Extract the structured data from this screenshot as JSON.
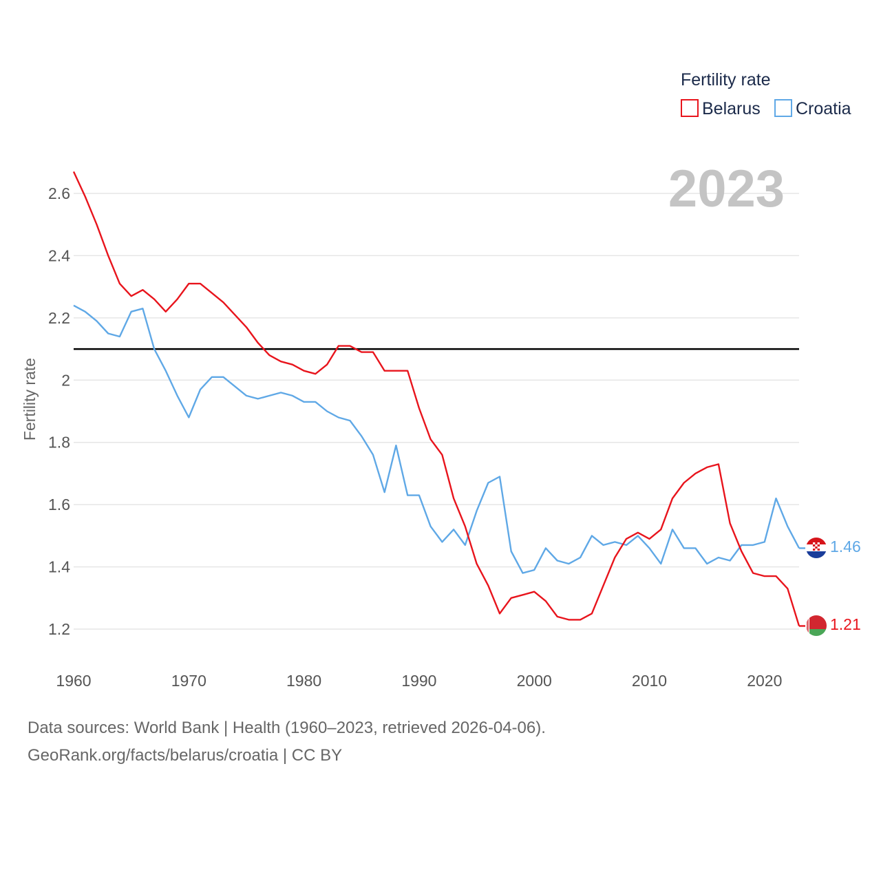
{
  "chart_data": {
    "type": "line",
    "title": "",
    "xlabel": "",
    "ylabel": "Fertility rate",
    "year_label": "2023",
    "legend_title": "Fertility rate",
    "xlim": [
      1960,
      2023
    ],
    "ylim": [
      1.1,
      2.7
    ],
    "x_ticks": [
      1960,
      1970,
      1980,
      1990,
      2000,
      2010,
      2020
    ],
    "y_ticks": [
      1.2,
      1.4,
      1.6,
      1.8,
      2.0,
      2.2,
      2.4,
      2.6
    ],
    "y_tick_labels": [
      "1.2",
      "1.4",
      "1.6",
      "1.8",
      "2",
      "2.2",
      "2.4",
      "2.6"
    ],
    "x_tick_labels": [
      "1960",
      "1970",
      "1980",
      "1990",
      "2000",
      "2010",
      "2020"
    ],
    "reference_line": 2.1,
    "x": [
      1960,
      1961,
      1962,
      1963,
      1964,
      1965,
      1966,
      1967,
      1968,
      1969,
      1970,
      1971,
      1972,
      1973,
      1974,
      1975,
      1976,
      1977,
      1978,
      1979,
      1980,
      1981,
      1982,
      1983,
      1984,
      1985,
      1986,
      1987,
      1988,
      1989,
      1990,
      1991,
      1992,
      1993,
      1994,
      1995,
      1996,
      1997,
      1998,
      1999,
      2000,
      2001,
      2002,
      2003,
      2004,
      2005,
      2006,
      2007,
      2008,
      2009,
      2010,
      2011,
      2012,
      2013,
      2014,
      2015,
      2016,
      2017,
      2018,
      2019,
      2020,
      2021,
      2022,
      2023
    ],
    "series": [
      {
        "name": "Belarus",
        "color": "#e8141c",
        "end_label": "1.21",
        "values": [
          2.67,
          2.59,
          2.5,
          2.4,
          2.31,
          2.27,
          2.29,
          2.26,
          2.22,
          2.26,
          2.31,
          2.31,
          2.28,
          2.25,
          2.21,
          2.17,
          2.12,
          2.08,
          2.06,
          2.05,
          2.03,
          2.02,
          2.05,
          2.11,
          2.11,
          2.09,
          2.09,
          2.03,
          2.03,
          2.03,
          1.91,
          1.81,
          1.76,
          1.62,
          1.53,
          1.41,
          1.34,
          1.25,
          1.3,
          1.31,
          1.32,
          1.29,
          1.24,
          1.23,
          1.23,
          1.25,
          1.34,
          1.43,
          1.49,
          1.51,
          1.49,
          1.52,
          1.62,
          1.67,
          1.7,
          1.72,
          1.73,
          1.54,
          1.45,
          1.38,
          1.37,
          1.37,
          1.33,
          1.21
        ]
      },
      {
        "name": "Croatia",
        "color": "#5fa8e6",
        "end_label": "1.46",
        "values": [
          2.24,
          2.22,
          2.19,
          2.15,
          2.14,
          2.22,
          2.23,
          2.1,
          2.03,
          1.95,
          1.88,
          1.97,
          2.01,
          2.01,
          1.98,
          1.95,
          1.94,
          1.95,
          1.96,
          1.95,
          1.93,
          1.93,
          1.9,
          1.88,
          1.87,
          1.82,
          1.76,
          1.64,
          1.79,
          1.63,
          1.63,
          1.53,
          1.48,
          1.52,
          1.47,
          1.58,
          1.67,
          1.69,
          1.45,
          1.38,
          1.39,
          1.46,
          1.42,
          1.41,
          1.43,
          1.5,
          1.47,
          1.48,
          1.47,
          1.5,
          1.46,
          1.41,
          1.52,
          1.46,
          1.46,
          1.41,
          1.43,
          1.42,
          1.47,
          1.47,
          1.48,
          1.62,
          1.53,
          1.46
        ]
      }
    ]
  },
  "footer": {
    "line1": "Data sources: World Bank | Health (1960–2023, retrieved 2026-04-06).",
    "line2": "GeoRank.org/facts/belarus/croatia | CC BY"
  }
}
